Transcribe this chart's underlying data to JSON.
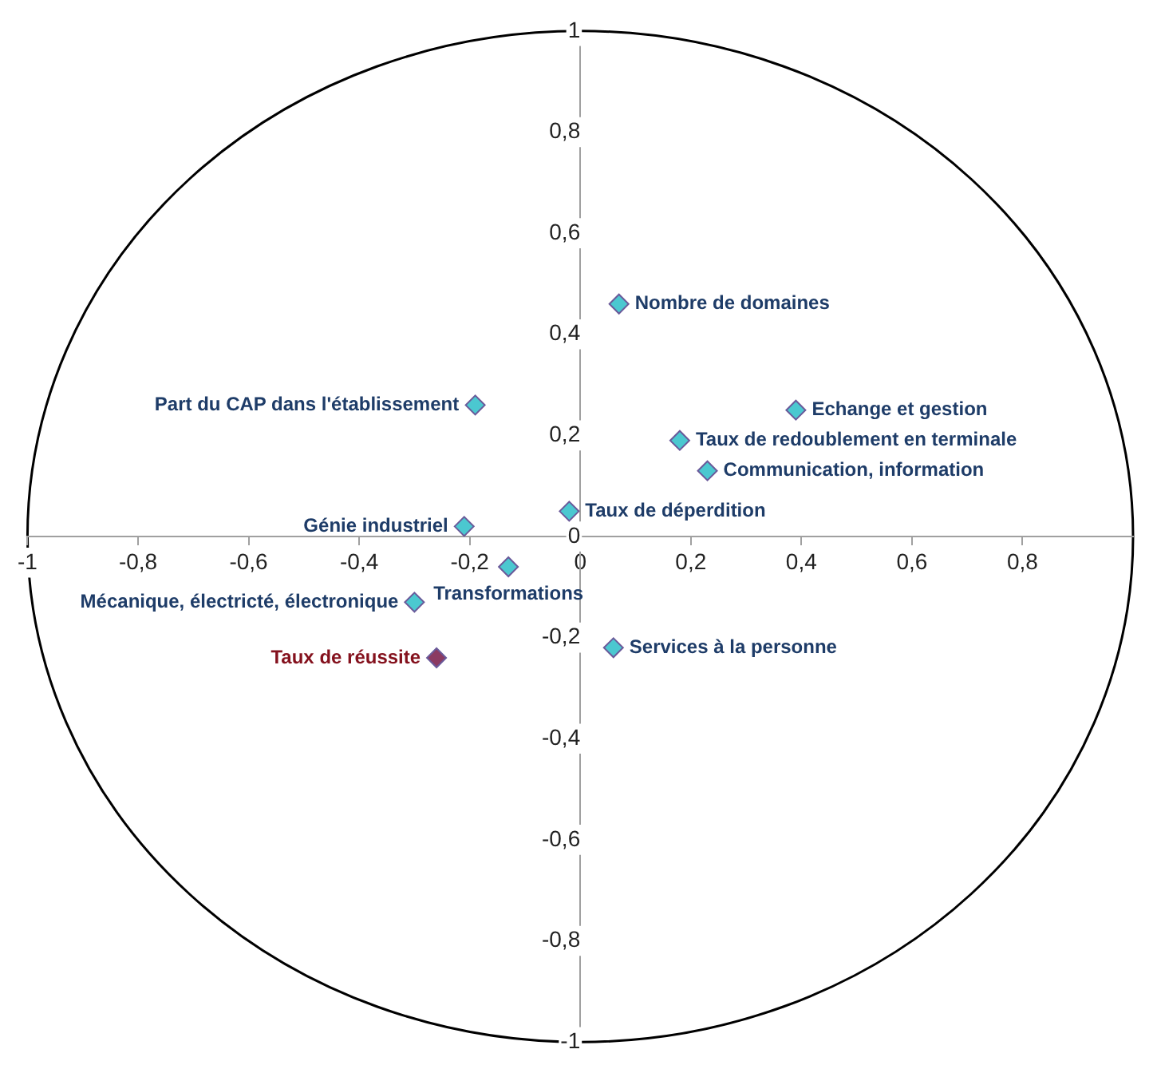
{
  "chart_data": {
    "type": "scatter",
    "marker": "diamond",
    "grid": false,
    "legend": false,
    "xlim": [
      -1,
      1
    ],
    "ylim": [
      -1,
      1
    ],
    "xticks": [
      {
        "value": -1,
        "label": "-1"
      },
      {
        "value": -0.8,
        "label": "-0,8"
      },
      {
        "value": -0.6,
        "label": "-0,6"
      },
      {
        "value": -0.4,
        "label": "-0,4"
      },
      {
        "value": -0.2,
        "label": "-0,2"
      },
      {
        "value": 0,
        "label": "0"
      },
      {
        "value": 0.2,
        "label": "0,2"
      },
      {
        "value": 0.4,
        "label": "0,4"
      },
      {
        "value": 0.6,
        "label": "0,6"
      },
      {
        "value": 0.8,
        "label": "0,8"
      }
    ],
    "yticks": [
      {
        "value": -1,
        "label": "-1"
      },
      {
        "value": -0.8,
        "label": "-0,8"
      },
      {
        "value": -0.6,
        "label": "-0,6"
      },
      {
        "value": -0.4,
        "label": "-0,4"
      },
      {
        "value": -0.2,
        "label": "-0,2"
      },
      {
        "value": 0,
        "label": "0"
      },
      {
        "value": 0.2,
        "label": "0,2"
      },
      {
        "value": 0.4,
        "label": "0,4"
      },
      {
        "value": 0.6,
        "label": "0,6"
      },
      {
        "value": 0.8,
        "label": "0,8"
      },
      {
        "value": 1,
        "label": "1"
      }
    ],
    "series": [
      {
        "name": "Nombre de domaines",
        "color": "#4bc8d0",
        "x": [
          0.07
        ],
        "values": [
          0.46
        ]
      },
      {
        "name": "Part du CAP dans l'établissement",
        "color": "#4bc8d0",
        "x": [
          -0.19
        ],
        "values": [
          0.26
        ]
      },
      {
        "name": "Taux de redoublement en terminale",
        "color": "#4bc8d0",
        "x": [
          0.18
        ],
        "values": [
          0.19
        ]
      },
      {
        "name": "Echange et gestion",
        "color": "#4bc8d0",
        "x": [
          0.39
        ],
        "values": [
          0.25
        ]
      },
      {
        "name": "Communication, information",
        "color": "#4bc8d0",
        "x": [
          0.23
        ],
        "values": [
          0.13
        ]
      },
      {
        "name": "Taux de déperdition",
        "color": "#4bc8d0",
        "x": [
          -0.02
        ],
        "values": [
          0.05
        ]
      },
      {
        "name": "Génie industriel",
        "color": "#4bc8d0",
        "x": [
          -0.21
        ],
        "values": [
          0.02
        ]
      },
      {
        "name": "Transformations",
        "color": "#4bc8d0",
        "x": [
          -0.13
        ],
        "values": [
          -0.06
        ]
      },
      {
        "name": "Mécanique, électricté, électronique",
        "color": "#4bc8d0",
        "x": [
          -0.3
        ],
        "values": [
          -0.13
        ]
      },
      {
        "name": "Services à la personne",
        "color": "#4bc8d0",
        "x": [
          0.06
        ],
        "values": [
          -0.22
        ]
      },
      {
        "name": "Taux de réussite",
        "color": "#8b3a62",
        "x": [
          -0.26
        ],
        "values": [
          -0.24
        ]
      }
    ]
  }
}
